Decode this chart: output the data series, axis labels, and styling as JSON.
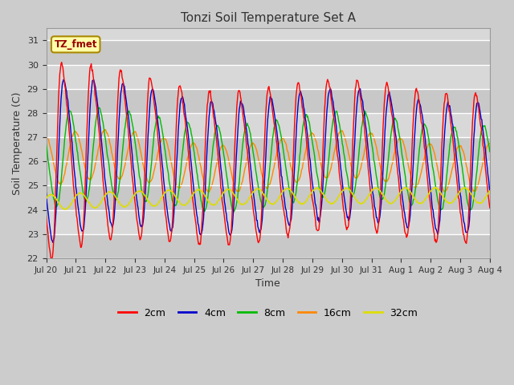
{
  "title": "Tonzi Soil Temperature Set A",
  "xlabel": "Time",
  "ylabel": "Soil Temperature (C)",
  "ylim": [
    22.0,
    31.5
  ],
  "yticks": [
    22.0,
    23.0,
    24.0,
    25.0,
    26.0,
    27.0,
    28.0,
    29.0,
    30.0,
    31.0
  ],
  "colors": {
    "2cm": "#ff0000",
    "4cm": "#0000cc",
    "8cm": "#00bb00",
    "16cm": "#ff8800",
    "32cm": "#dddd00"
  },
  "legend_label": "TZ_fmet",
  "background_color": "#cccccc",
  "plot_bg_color": "#d8d8d8",
  "n_points": 720,
  "xtick_positions": [
    0,
    1,
    2,
    3,
    4,
    5,
    6,
    7,
    8,
    9,
    10,
    11,
    12,
    13,
    14,
    15
  ],
  "xtick_labels": [
    "Jul 20",
    "Jul 21",
    "Jul 22",
    "Jul 23",
    "Jul 24",
    "Jul 25",
    "Jul 26",
    "Jul 27",
    "Jul 28",
    "Jul 29",
    "Jul 30",
    "Jul 31",
    "Aug 1",
    "Aug 2",
    "Aug 3",
    "Aug 4"
  ]
}
